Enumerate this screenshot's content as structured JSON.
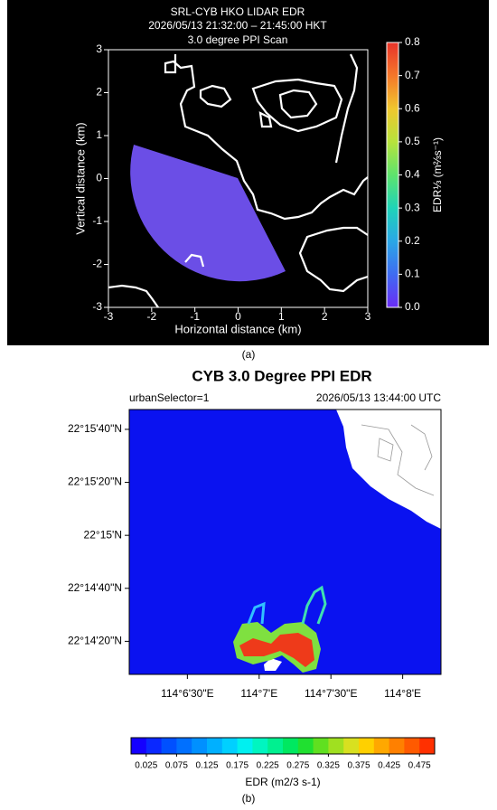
{
  "chart_data": [
    {
      "type": "ppi",
      "title": [
        "SRL-CYB HKO LIDAR EDR",
        "2026/05/13 21:32:00 – 21:45:00 HKT",
        "3.0 degree PPI Scan"
      ],
      "xlabel": "Horizontal distance (km)",
      "ylabel": "Vertical distance (km)",
      "xlim": [
        -3,
        3
      ],
      "ylim": [
        -3,
        3
      ],
      "xticks": [
        -3,
        -2,
        -1,
        0,
        1,
        2,
        3
      ],
      "yticks": [
        -3,
        -2,
        -1,
        0,
        1,
        2,
        3
      ],
      "colorbar": {
        "label": "EDR⅓ (m⅔s⁻¹)",
        "lim": [
          0,
          0.8
        ],
        "ticks": [
          {
            "value": 0,
            "label": "0.0"
          },
          0.1,
          0.2,
          0.3,
          0.4,
          0.5,
          0.6,
          0.7,
          0.8
        ],
        "colors": [
          "#6a2cf5",
          "#3f6cf2",
          "#2aa7e6",
          "#1fd3b8",
          "#5ee36d",
          "#b7e33c",
          "#f0c72e",
          "#f5772a",
          "#e8332a"
        ]
      },
      "caption": "(a)"
    },
    {
      "type": "ppi",
      "title": [
        "CYB 3.0 Degree PPI EDR"
      ],
      "left_note": "urbanSelector=1",
      "right_note": "2026/05/13 13:44:00 UTC",
      "xlim": [
        114.10158,
        114.13778
      ],
      "ylim": [
        22.23542,
        22.26319
      ],
      "xticks": [
        {
          "value": 114.108333,
          "label": "114°6'30\"E"
        },
        {
          "value": 114.116667,
          "label": "114°7'E"
        },
        {
          "value": 114.125,
          "label": "114°7'30\"E"
        },
        {
          "value": 114.133333,
          "label": "114°8'E"
        }
      ],
      "yticks": [
        {
          "value": 22.238889,
          "label": "22°14'20\"N"
        },
        {
          "value": 22.244444,
          "label": "22°14'40\"N"
        },
        {
          "value": 22.25,
          "label": "22°15'N"
        },
        {
          "value": 22.255556,
          "label": "22°15'20\"N"
        },
        {
          "value": 22.261111,
          "label": "22°15'40\"N"
        }
      ],
      "colorbar": {
        "label": "EDR (m2/3 s-1)",
        "lim": [
          0,
          0.5
        ],
        "ticks": [
          0.025,
          0.075,
          0.125,
          0.175,
          0.225,
          0.275,
          0.325,
          0.375,
          0.425,
          0.475
        ],
        "colors": [
          "#1400ff",
          "#0a28ff",
          "#0050ff",
          "#0070ff",
          "#0090ff",
          "#00b0ff",
          "#00d0ff",
          "#00f0f0",
          "#00f5c0",
          "#00f090",
          "#00e860",
          "#20e030",
          "#60e020",
          "#a0e020",
          "#d8e020",
          "#ffd000",
          "#ffa800",
          "#ff8000",
          "#ff5a00",
          "#ff3000"
        ]
      },
      "caption": "(b)"
    }
  ]
}
